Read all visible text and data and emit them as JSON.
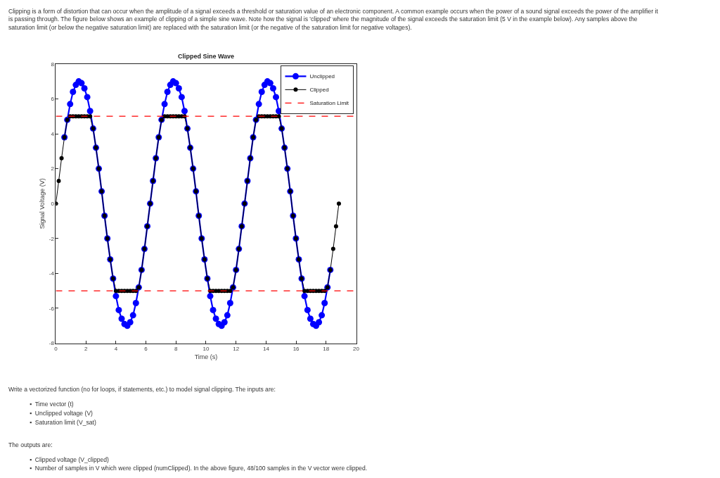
{
  "chart_data": {
    "type": "line",
    "title": "Clipped Sine Wave",
    "xlabel": "Time (s)",
    "ylabel": "Signal Voltage (V)",
    "x": [
      0,
      0.19,
      0.38,
      0.57,
      0.76,
      0.95,
      1.14,
      1.33,
      1.52,
      1.71,
      1.9,
      2.09,
      2.28,
      2.48,
      2.67,
      2.86,
      3.05,
      3.24,
      3.43,
      3.62,
      3.81,
      4.0,
      4.19,
      4.38,
      4.57,
      4.76,
      4.95,
      5.14,
      5.33,
      5.52,
      5.71,
      5.9,
      6.09,
      6.28,
      6.47,
      6.66,
      6.85,
      7.04,
      7.24,
      7.43,
      7.62,
      7.81,
      8.0,
      8.19,
      8.38,
      8.57,
      8.76,
      8.95,
      9.14,
      9.33,
      9.52,
      9.71,
      9.9,
      10.09,
      10.28,
      10.47,
      10.66,
      10.85,
      11.04,
      11.23,
      11.42,
      11.61,
      11.8,
      12.0,
      12.19,
      12.38,
      12.57,
      12.76,
      12.95,
      13.14,
      13.33,
      13.52,
      13.71,
      13.9,
      14.09,
      14.28,
      14.47,
      14.66,
      14.85,
      15.04,
      15.23,
      15.42,
      15.61,
      15.8,
      15.99,
      16.18,
      16.37,
      16.56,
      16.76,
      16.95,
      17.14,
      17.33,
      17.52,
      17.71,
      17.9,
      18.09,
      18.28,
      18.47,
      18.66,
      18.85
    ],
    "series": [
      {
        "name": "Unclipped",
        "color": "#0000ff",
        "values": [
          null,
          null,
          null,
          3.8,
          4.8,
          5.7,
          6.4,
          6.8,
          7.0,
          6.9,
          6.6,
          6.1,
          5.3,
          4.3,
          3.2,
          2.0,
          0.7,
          -0.7,
          -2.0,
          -3.2,
          -4.3,
          -5.3,
          -6.1,
          -6.6,
          -6.9,
          -7.0,
          -6.8,
          -6.4,
          -5.7,
          -4.8,
          -3.8,
          -2.6,
          -1.3,
          0,
          1.3,
          2.6,
          3.8,
          4.8,
          5.7,
          6.4,
          6.8,
          7.0,
          6.9,
          6.6,
          6.1,
          5.3,
          4.3,
          3.2,
          2.0,
          0.7,
          -0.7,
          -2.0,
          -3.2,
          -4.3,
          -5.3,
          -6.1,
          -6.6,
          -6.9,
          -7.0,
          -6.8,
          -6.4,
          -5.7,
          -4.8,
          -3.8,
          -2.6,
          -1.3,
          0,
          1.3,
          2.6,
          3.8,
          4.8,
          5.7,
          6.4,
          6.8,
          7.0,
          6.9,
          6.6,
          6.1,
          5.3,
          4.3,
          3.2,
          2.0,
          0.7,
          -0.7,
          -2.0,
          -3.2,
          -4.3,
          -5.3,
          -6.1,
          -6.6,
          -6.9,
          -7.0,
          -6.8,
          -6.4,
          -5.7,
          -4.8,
          -3.8,
          null,
          null,
          null
        ]
      },
      {
        "name": "Clipped",
        "color": "#000000",
        "values": [
          0,
          1.3,
          2.6,
          3.8,
          4.8,
          5,
          5,
          5,
          5,
          5,
          5,
          5,
          5,
          4.3,
          3.2,
          2.0,
          0.7,
          -0.7,
          -2.0,
          -3.2,
          -4.3,
          -5,
          -5,
          -5,
          -5,
          -5,
          -5,
          -5,
          -5,
          -4.8,
          -3.8,
          -2.6,
          -1.3,
          0,
          1.3,
          2.6,
          3.8,
          4.8,
          5,
          5,
          5,
          5,
          5,
          5,
          5,
          5,
          4.3,
          3.2,
          2.0,
          0.7,
          -0.7,
          -2.0,
          -3.2,
          -4.3,
          -5,
          -5,
          -5,
          -5,
          -5,
          -5,
          -5,
          -5,
          -4.8,
          -3.8,
          -2.6,
          -1.3,
          0,
          1.3,
          2.6,
          3.8,
          4.8,
          5,
          5,
          5,
          5,
          5,
          5,
          5,
          5,
          4.3,
          3.2,
          2.0,
          0.7,
          -0.7,
          -2.0,
          -3.2,
          -4.3,
          -5,
          -5,
          -5,
          -5,
          -5,
          -5,
          -5,
          -5,
          -4.8,
          -3.8,
          -2.6,
          -1.3,
          0
        ]
      }
    ],
    "ref_lines": [
      {
        "axis": "y",
        "value": 5,
        "label": "Saturation Limit",
        "color": "#ff0000",
        "line_style": "dashed"
      },
      {
        "axis": "y",
        "value": -5,
        "color": "#ff0000",
        "line_style": "dashed"
      }
    ],
    "xlim": [
      0,
      20
    ],
    "xticks": [
      0,
      2,
      4,
      6,
      8,
      10,
      12,
      14,
      16,
      18,
      20
    ],
    "ylim": [
      -8,
      8
    ],
    "yticks": [
      -8,
      -6,
      -4,
      -2,
      0,
      2,
      4,
      6,
      8
    ],
    "grid": false,
    "legend": "top right",
    "marker": "circle",
    "line_style": "solid",
    "annotations": [
      "Clipping is a form of distortion that can occur when the amplitude of a signal exceeds a threshold or saturation value of an electronic component. A common example occurs when the power of a sound signal exceeds the power of the amplifier it",
      "is passing through. The figure below shows an example of clipping of a simple sine wave. Note how the signal is 'clipped' where the magnitude of the signal exceeds the saturation limit (5 V in the example below). Any samples above the",
      "saturation limit (or below the negative saturation limit) are replaced with the saturation limit (or the negative of the saturation limit for negative voltages).",
      "Write a vectorized function (no for loops, if statements, etc.) to model signal clipping. The inputs are:",
      "▪  Time vector (t)",
      "▪  Unclipped voltage (V)",
      "▪  Saturation limit (V_sat)",
      "The outputs are:",
      "▪  Clipped voltage (V_clipped)",
      "▪  Number of samples in V which were clipped (numClipped). In the above figure, 48/100 samples in the V vector were clipped."
    ]
  }
}
